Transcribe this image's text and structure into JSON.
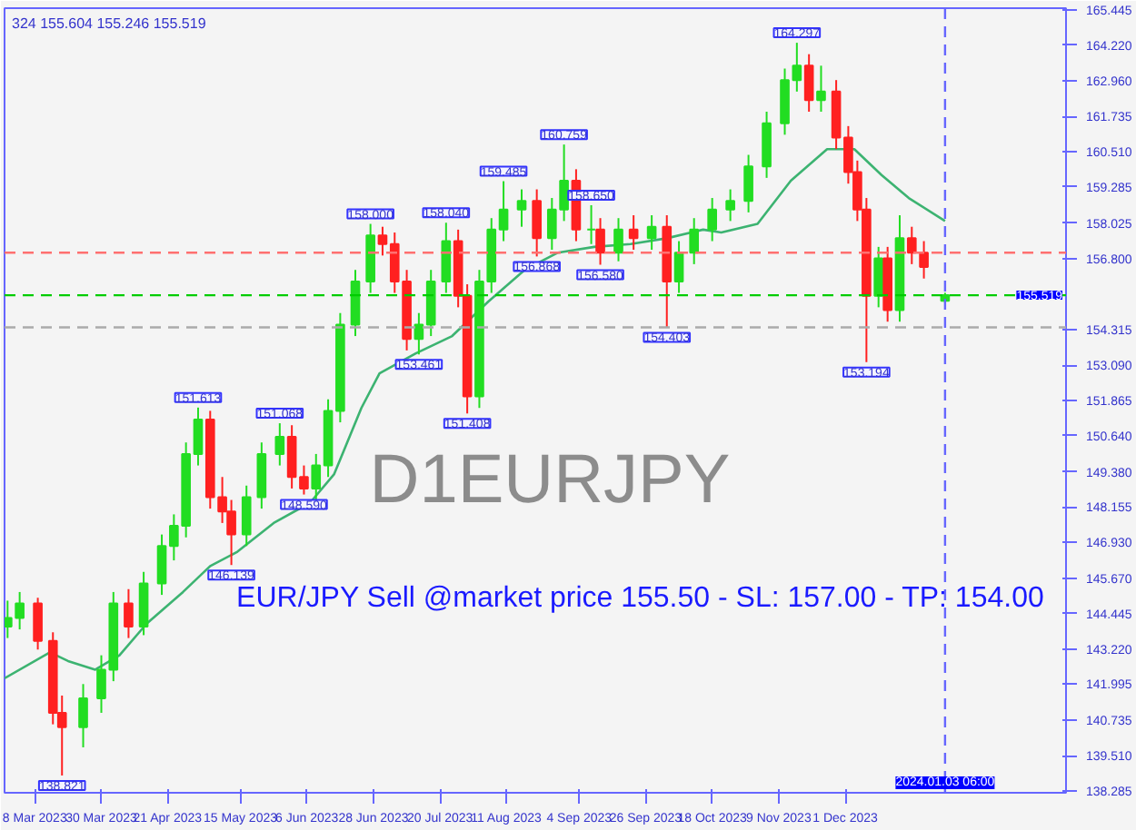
{
  "chart_data": {
    "type": "candlestick",
    "x": [
      "2023-02-27",
      "2023-03-03",
      "2023-03-09",
      "2023-03-14",
      "2023-03-17",
      "2023-03-24",
      "2023-03-30",
      "2023-04-03",
      "2023-04-08",
      "2023-04-13",
      "2023-04-19",
      "2023-04-23",
      "2023-04-27",
      "2023-05-01",
      "2023-05-05",
      "2023-05-09",
      "2023-05-12",
      "2023-05-17",
      "2023-05-22",
      "2023-05-28",
      "2023-06-01",
      "2023-06-05",
      "2023-06-09",
      "2023-06-13",
      "2023-06-17",
      "2023-06-22",
      "2023-06-27",
      "2023-07-01",
      "2023-07-05",
      "2023-07-09",
      "2023-07-13",
      "2023-07-17",
      "2023-07-22",
      "2023-07-26",
      "2023-07-29",
      "2023-08-02",
      "2023-08-06",
      "2023-08-10",
      "2023-08-16",
      "2023-08-21",
      "2023-08-26",
      "2023-08-30",
      "2023-09-03",
      "2023-09-08",
      "2023-09-11",
      "2023-09-17",
      "2023-09-22",
      "2023-09-28",
      "2023-10-03",
      "2023-10-07",
      "2023-10-12",
      "2023-10-18",
      "2023-10-24",
      "2023-10-30",
      "2023-11-05",
      "2023-11-11",
      "2023-11-15",
      "2023-11-19",
      "2023-11-23",
      "2023-11-28",
      "2023-12-02",
      "2023-12-05",
      "2023-12-08",
      "2023-12-12",
      "2023-12-15",
      "2023-12-19",
      "2023-12-23",
      "2023-12-27",
      "2024-01-03"
    ],
    "ohlc": [
      [
        144.0,
        144.9,
        143.6,
        144.3
      ],
      [
        144.3,
        145.2,
        143.9,
        144.8
      ],
      [
        144.8,
        145.0,
        143.2,
        143.5
      ],
      [
        143.5,
        143.8,
        140.6,
        141.0
      ],
      [
        141.0,
        141.6,
        138.821,
        140.5
      ],
      [
        140.5,
        142.0,
        139.8,
        141.5
      ],
      [
        141.5,
        143.0,
        141.0,
        142.5
      ],
      [
        142.5,
        145.2,
        142.1,
        144.8
      ],
      [
        144.8,
        145.3,
        143.6,
        144.0
      ],
      [
        144.0,
        145.9,
        143.7,
        145.5
      ],
      [
        145.5,
        147.2,
        145.1,
        146.8
      ],
      [
        146.8,
        147.9,
        146.3,
        147.5
      ],
      [
        147.5,
        150.4,
        147.1,
        150.0
      ],
      [
        150.0,
        151.613,
        149.6,
        151.2
      ],
      [
        151.2,
        151.5,
        148.1,
        148.5
      ],
      [
        148.5,
        149.2,
        147.6,
        148.0
      ],
      [
        148.0,
        148.4,
        146.139,
        147.2
      ],
      [
        147.2,
        148.9,
        146.8,
        148.5
      ],
      [
        148.5,
        150.4,
        148.1,
        150.0
      ],
      [
        150.0,
        151.068,
        149.6,
        150.6
      ],
      [
        150.6,
        151.0,
        148.8,
        149.2
      ],
      [
        149.2,
        149.6,
        148.59,
        148.8
      ],
      [
        148.8,
        150.0,
        148.4,
        149.6
      ],
      [
        149.6,
        151.9,
        149.2,
        151.5
      ],
      [
        151.5,
        154.9,
        151.1,
        154.5
      ],
      [
        154.5,
        156.4,
        154.1,
        156.0
      ],
      [
        156.0,
        158.0,
        155.6,
        157.6
      ],
      [
        157.6,
        157.9,
        156.9,
        157.3
      ],
      [
        157.3,
        157.7,
        155.6,
        156.0
      ],
      [
        156.0,
        156.4,
        153.6,
        154.0
      ],
      [
        154.0,
        154.9,
        153.461,
        154.5
      ],
      [
        154.5,
        156.4,
        154.1,
        156.0
      ],
      [
        156.0,
        158.04,
        155.6,
        157.4
      ],
      [
        157.4,
        157.8,
        155.1,
        155.5
      ],
      [
        155.5,
        155.9,
        151.408,
        152.0
      ],
      [
        152.0,
        156.4,
        151.6,
        156.0
      ],
      [
        156.0,
        158.2,
        155.6,
        157.8
      ],
      [
        157.8,
        159.485,
        157.4,
        158.5
      ],
      [
        158.5,
        159.2,
        157.9,
        158.8
      ],
      [
        158.8,
        159.2,
        156.868,
        157.5
      ],
      [
        157.5,
        158.9,
        157.1,
        158.5
      ],
      [
        158.5,
        160.759,
        158.1,
        159.5
      ],
      [
        159.5,
        159.9,
        157.4,
        157.8
      ],
      [
        157.8,
        158.65,
        157.3,
        157.8
      ],
      [
        157.8,
        158.2,
        156.58,
        157.0
      ],
      [
        157.0,
        158.2,
        156.7,
        157.8
      ],
      [
        157.8,
        158.3,
        157.1,
        157.5
      ],
      [
        157.5,
        158.3,
        157.1,
        157.9
      ],
      [
        157.9,
        158.3,
        154.403,
        156.0
      ],
      [
        156.0,
        157.4,
        155.6,
        157.0
      ],
      [
        157.0,
        158.2,
        156.6,
        157.8
      ],
      [
        157.8,
        158.9,
        157.4,
        158.5
      ],
      [
        158.5,
        159.2,
        158.1,
        158.8
      ],
      [
        158.8,
        160.4,
        158.4,
        160.0
      ],
      [
        160.0,
        161.9,
        159.6,
        161.5
      ],
      [
        161.5,
        163.4,
        161.1,
        163.0
      ],
      [
        163.0,
        164.297,
        162.6,
        163.5
      ],
      [
        163.5,
        163.9,
        161.9,
        162.3
      ],
      [
        162.3,
        163.5,
        161.9,
        162.6
      ],
      [
        162.6,
        163.0,
        160.6,
        161.0
      ],
      [
        161.0,
        161.4,
        159.4,
        159.8
      ],
      [
        159.8,
        160.2,
        158.1,
        158.5
      ],
      [
        158.5,
        158.9,
        153.194,
        155.5
      ],
      [
        155.5,
        157.2,
        155.1,
        156.8
      ],
      [
        156.8,
        157.2,
        154.6,
        155.0
      ],
      [
        155.0,
        158.3,
        154.6,
        157.5
      ],
      [
        157.5,
        157.9,
        156.6,
        157.0
      ],
      [
        157.0,
        157.4,
        156.1,
        156.5
      ],
      [
        155.324,
        155.604,
        155.246,
        155.519
      ]
    ],
    "series": [
      {
        "type": "line",
        "color": "#3cb371",
        "x": [
          "2023-02-26",
          "2023-03-13",
          "2023-03-19",
          "2023-03-28",
          "2023-04-05",
          "2023-04-14",
          "2023-04-26",
          "2023-05-05",
          "2023-05-14",
          "2023-05-26",
          "2023-06-07",
          "2023-06-15",
          "2023-06-24",
          "2023-06-30",
          "2023-07-12",
          "2023-07-24",
          "2023-08-05",
          "2023-08-17",
          "2023-08-28",
          "2023-09-09",
          "2023-09-21",
          "2023-10-03",
          "2023-10-15",
          "2023-10-21",
          "2023-11-02",
          "2023-11-13",
          "2023-11-25",
          "2023-12-04",
          "2023-12-13",
          "2023-12-22",
          "2024-01-03"
        ],
        "values": [
          142.2,
          143.1,
          142.8,
          142.5,
          143.0,
          144.1,
          145.2,
          146.1,
          146.6,
          147.6,
          148.3,
          149.3,
          151.6,
          152.8,
          153.5,
          154.1,
          155.3,
          156.4,
          157.0,
          157.2,
          157.3,
          157.5,
          157.8,
          157.7,
          158.0,
          159.5,
          160.6,
          160.6,
          159.7,
          158.9,
          158.1
        ]
      }
    ],
    "annotations": [
      "324 155.604 155.246 155.519",
      "D1EURJPY",
      "EUR/JPY Sell @market price 155.50 - SL: 157.00 - TP: 154.00",
      {
        "text": "138.821",
        "x": "2023-03-17",
        "y": 138.821
      },
      {
        "text": "151.613",
        "x": "2023-05-01",
        "y": 151.613
      },
      {
        "text": "146.139",
        "x": "2023-05-12",
        "y": 146.139
      },
      {
        "text": "151.068",
        "x": "2023-05-28",
        "y": 151.068
      },
      {
        "text": "148.590",
        "x": "2023-06-05",
        "y": 148.59
      },
      {
        "text": "158.000",
        "x": "2023-06-27",
        "y": 158.0
      },
      {
        "text": "153.461",
        "x": "2023-07-13",
        "y": 153.461
      },
      {
        "text": "158.040",
        "x": "2023-07-22",
        "y": 158.04
      },
      {
        "text": "151.408",
        "x": "2023-07-29",
        "y": 151.408
      },
      {
        "text": "159.485",
        "x": "2023-08-10",
        "y": 159.485
      },
      {
        "text": "156.868",
        "x": "2023-08-21",
        "y": 156.868
      },
      {
        "text": "160.759",
        "x": "2023-08-30",
        "y": 160.759
      },
      {
        "text": "158.650",
        "x": "2023-09-08",
        "y": 158.65
      },
      {
        "text": "156.580",
        "x": "2023-09-11",
        "y": 156.58
      },
      {
        "text": "154.403",
        "x": "2023-10-03",
        "y": 154.403
      },
      {
        "text": "164.297",
        "x": "2023-11-15",
        "y": 164.297
      },
      {
        "text": "153.194",
        "x": "2023-12-08",
        "y": 153.194
      }
    ],
    "ref_lines": [
      {
        "axis": "y",
        "value": 157.0,
        "color": "#ff7070",
        "line_style": "dashed"
      },
      {
        "axis": "y",
        "value": 155.519,
        "color": "#00cc00",
        "line_style": "dashed",
        "label": "155.519"
      },
      {
        "axis": "y",
        "value": 154.403,
        "color": "#aaaaaa",
        "line_style": "dashed"
      },
      {
        "axis": "x",
        "value": "2024-01-03",
        "color": "#6666ff",
        "line_style": "dashed",
        "label": "2024.01.03 06:00"
      }
    ],
    "xlim": [
      "2023-02-26",
      "2024-02-12"
    ],
    "xticks": [
      {
        "value": "2023-03-08",
        "label": "8 Mar 2023"
      },
      {
        "value": "2023-03-30",
        "label": "30 Mar 2023"
      },
      {
        "value": "2023-04-21",
        "label": "21 Apr 2023"
      },
      {
        "value": "2023-05-15",
        "label": "15 May 2023"
      },
      {
        "value": "2023-06-06",
        "label": "6 Jun 2023"
      },
      {
        "value": "2023-06-28",
        "label": "28 Jun 2023"
      },
      {
        "value": "2023-07-20",
        "label": "20 Jul 2023"
      },
      {
        "value": "2023-08-11",
        "label": "11 Aug 2023"
      },
      {
        "value": "2023-09-04",
        "label": "4 Sep 2023"
      },
      {
        "value": "2023-09-26",
        "label": "26 Sep 2023"
      },
      {
        "value": "2023-10-18",
        "label": "18 Oct 2023"
      },
      {
        "value": "2023-11-09",
        "label": "9 Nov 2023"
      },
      {
        "value": "2023-12-01",
        "label": "1 Dec 2023"
      }
    ],
    "ylim": [
      138.22,
      165.5
    ],
    "yticks": [
      {
        "value": 138.285,
        "label": "138.285"
      },
      {
        "value": 139.51,
        "label": "139.510"
      },
      {
        "value": 140.735,
        "label": "140.735"
      },
      {
        "value": 141.995,
        "label": "141.995"
      },
      {
        "value": 143.22,
        "label": "143.220"
      },
      {
        "value": 144.445,
        "label": "144.445"
      },
      {
        "value": 145.67,
        "label": "145.670"
      },
      {
        "value": 146.93,
        "label": "146.930"
      },
      {
        "value": 148.155,
        "label": "148.155"
      },
      {
        "value": 149.38,
        "label": "149.380"
      },
      {
        "value": 150.64,
        "label": "150.640"
      },
      {
        "value": 151.865,
        "label": "151.865"
      },
      {
        "value": 153.09,
        "label": "153.090"
      },
      {
        "value": 154.315,
        "label": "154.315"
      },
      {
        "value": 156.8,
        "label": "156.800"
      },
      {
        "value": 158.025,
        "label": "158.025"
      },
      {
        "value": 159.285,
        "label": "159.285"
      },
      {
        "value": 160.51,
        "label": "160.510"
      },
      {
        "value": 161.735,
        "label": "161.735"
      },
      {
        "value": 162.96,
        "label": "162.960"
      },
      {
        "value": 164.22,
        "label": "164.220"
      },
      {
        "value": 165.445,
        "label": "165.445"
      }
    ],
    "grid": false
  }
}
